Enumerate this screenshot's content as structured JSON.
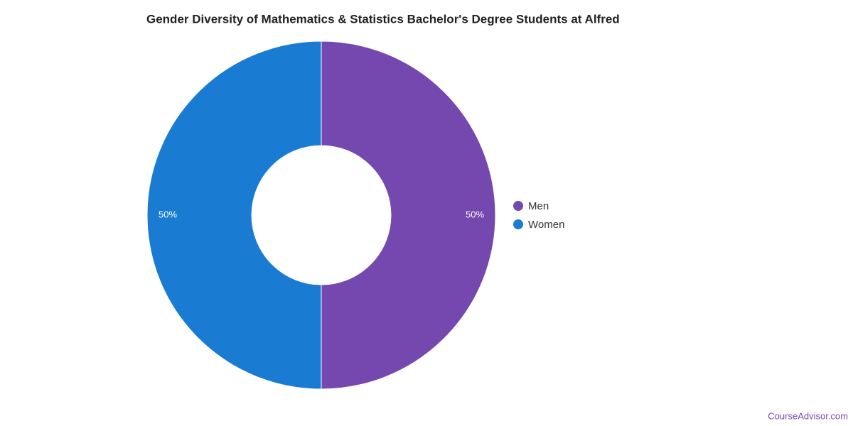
{
  "chart_data": {
    "type": "pie",
    "title": "Gender Diversity of Mathematics & Statistics Bachelor's Degree Students at Alfred",
    "categories": [
      "Men",
      "Women"
    ],
    "values": [
      50,
      50
    ],
    "value_labels": [
      "50%",
      "50%"
    ],
    "colors": [
      "#7448ae",
      "#1a7bd3"
    ],
    "donut": true,
    "legend": "right",
    "source": "CourseAdvisor.com"
  }
}
